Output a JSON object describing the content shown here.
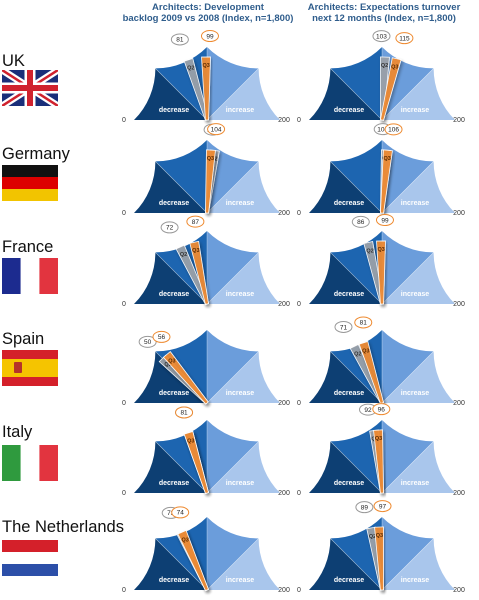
{
  "columns": [
    {
      "title_line1": "Architects: Development",
      "title_line2": "backlog 2009 vs 2008 (Index, n=1,800)"
    },
    {
      "title_line1": "Architects: Expectations turnover",
      "title_line2": "next 12 months (Index, n=1,800)"
    }
  ],
  "labels": {
    "decrease": "decrease",
    "increase": "increase",
    "axis_min": "0",
    "axis_max": "200"
  },
  "colors": {
    "dark": "#0d3f73",
    "mid": "#1d65b0",
    "light": "#6b9ddb",
    "pale": "#a9c6ec",
    "q2": "#9aa0a8",
    "q3": "#ee8a30",
    "callout_q3_border": "#ee8a30",
    "callout_q2_border": "#999999"
  },
  "countries": [
    {
      "name": "UK",
      "flag": "uk"
    },
    {
      "name": "Germany",
      "flag": "germany"
    },
    {
      "name": "France",
      "flag": "france"
    },
    {
      "name": "Spain",
      "flag": "spain"
    },
    {
      "name": "Italy",
      "flag": "italy"
    },
    {
      "name": "The Netherlands",
      "flag": "netherlands"
    }
  ],
  "chart_data": {
    "type": "gauge",
    "scale": [
      0,
      200
    ],
    "series_names": [
      "Q2",
      "Q3"
    ],
    "rows": [
      {
        "country": "UK",
        "backlog": {
          "Q2": 81,
          "Q3": 99
        },
        "turnover": {
          "Q2": 103,
          "Q3": 115
        }
      },
      {
        "country": "Germany",
        "backlog": {
          "Q2": 108,
          "Q3": 104
        },
        "turnover": {
          "Q2": 104,
          "Q3": 106
        }
      },
      {
        "country": "France",
        "backlog": {
          "Q2": 72,
          "Q3": 87
        },
        "turnover": {
          "Q2": 86,
          "Q3": 99
        }
      },
      {
        "country": "Spain",
        "backlog": {
          "Q2": 50,
          "Q3": 56
        },
        "turnover": {
          "Q2": 71,
          "Q3": 81
        }
      },
      {
        "country": "Italy",
        "backlog": {
          "Q2": 81,
          "Q3": 81
        },
        "turnover": {
          "Q2": 92,
          "Q3": 96
        }
      },
      {
        "country": "The Netherlands",
        "backlog": {
          "Q2": 73,
          "Q3": 74
        },
        "turnover": {
          "Q2": 89,
          "Q3": 97
        }
      }
    ]
  }
}
